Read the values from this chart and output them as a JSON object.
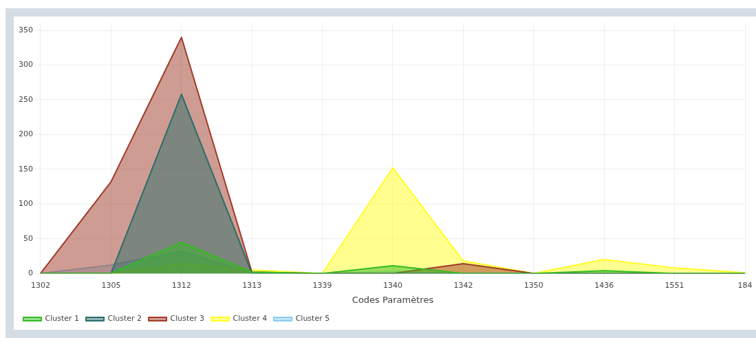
{
  "chart_data": {
    "type": "area",
    "xlabel": "Codes Paramètres",
    "categories": [
      "1302",
      "1305",
      "1312",
      "1313",
      "1339",
      "1340",
      "1342",
      "1350",
      "1436",
      "1551",
      "184"
    ],
    "series": [
      {
        "name": "Cluster 1",
        "color": "#33bb22",
        "values": [
          0,
          0,
          45,
          2,
          0,
          11,
          0,
          0,
          4,
          0,
          0
        ]
      },
      {
        "name": "Cluster 2",
        "color": "#2a6e6a",
        "values": [
          0,
          0,
          258,
          0,
          0,
          0,
          0,
          0,
          0,
          0,
          0
        ]
      },
      {
        "name": "Cluster 3",
        "color": "#a03a28",
        "values": [
          0,
          132,
          340,
          2,
          0,
          0,
          14,
          0,
          0,
          0,
          0
        ]
      },
      {
        "name": "Cluster 4",
        "color": "#ffff22",
        "values": [
          0,
          0,
          14,
          5,
          0,
          152,
          18,
          0,
          20,
          8,
          1
        ]
      },
      {
        "name": "Cluster 5",
        "color": "#88ccee",
        "values": [
          0,
          12,
          32,
          0,
          0,
          3,
          0,
          0,
          0,
          0,
          0
        ]
      }
    ],
    "ylim": [
      0,
      360
    ],
    "yticks": [
      0,
      50,
      100,
      150,
      200,
      250,
      300,
      350
    ],
    "grid": true,
    "legend": "bottom left",
    "marker": "none",
    "line_style": "solid"
  }
}
